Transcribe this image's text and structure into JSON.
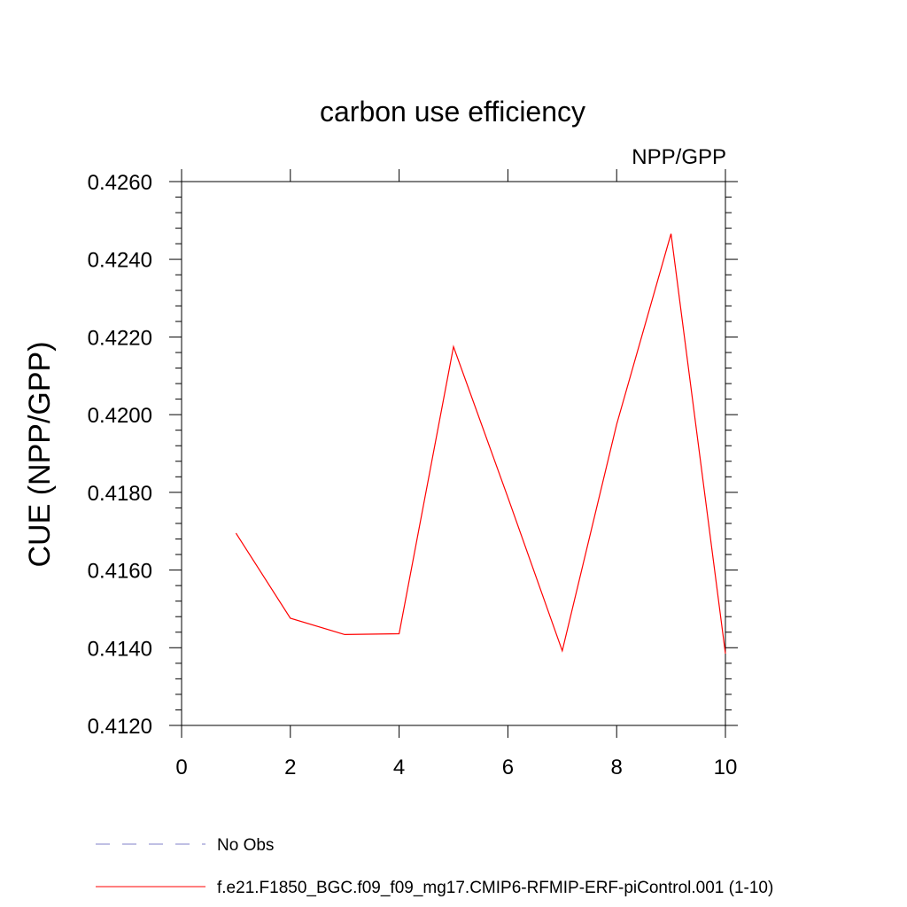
{
  "chart_data": {
    "type": "line",
    "title": "carbon use efficiency",
    "subtitle_right": "NPP/GPP",
    "xlabel": "",
    "ylabel": "CUE  (NPP/GPP)",
    "xlim": [
      0,
      10
    ],
    "ylim": [
      0.412,
      0.426
    ],
    "x_ticks": [
      "0",
      "2",
      "4",
      "6",
      "8",
      "10"
    ],
    "y_ticks": [
      "0.4120",
      "0.4140",
      "0.4160",
      "0.4180",
      "0.4200",
      "0.4220",
      "0.4240",
      "0.4260"
    ],
    "grid": false,
    "legend_position": "bottom",
    "series": [
      {
        "name": "f.e21.F1850_BGC.f09_f09_mg17.CMIP6-RFMIP-ERF-piControl.001 (1-10)",
        "color": "#ff0000",
        "dash": "solid",
        "x": [
          1,
          2,
          3,
          4,
          5,
          6,
          7,
          8,
          9,
          10
        ],
        "y": [
          0.41695,
          0.41476,
          0.41434,
          0.41436,
          0.42175,
          0.41787,
          0.41392,
          0.41975,
          0.42466,
          0.41385
        ]
      }
    ],
    "legend": [
      {
        "label": "No Obs",
        "color": "#8080c8",
        "dash": "dashed"
      },
      {
        "label": "f.e21.F1850_BGC.f09_f09_mg17.CMIP6-RFMIP-ERF-piControl.001 (1-10)",
        "color": "#ff0000",
        "dash": "solid"
      }
    ]
  }
}
